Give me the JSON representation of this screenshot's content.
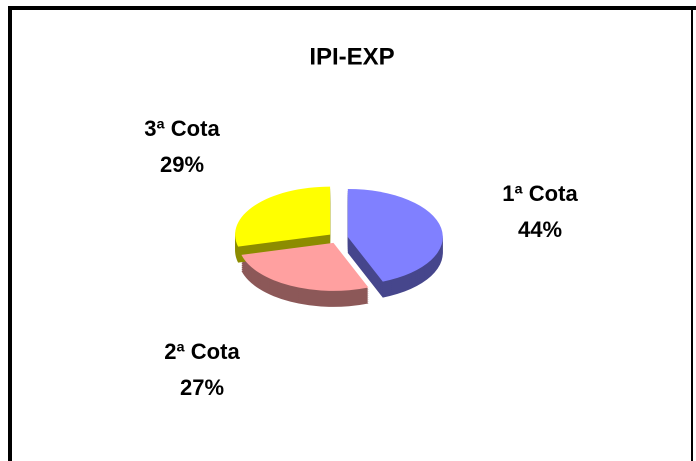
{
  "chart_data": {
    "type": "pie3d",
    "title": "IPI-EXP",
    "categories": [
      "1ª Cota",
      "2ª Cota",
      "3ª Cota"
    ],
    "values": [
      44,
      27,
      29
    ],
    "value_labels": [
      "44%",
      "27%",
      "29%"
    ],
    "colors": [
      "#8080ff",
      "#ffa0a0",
      "#ffff00"
    ]
  }
}
